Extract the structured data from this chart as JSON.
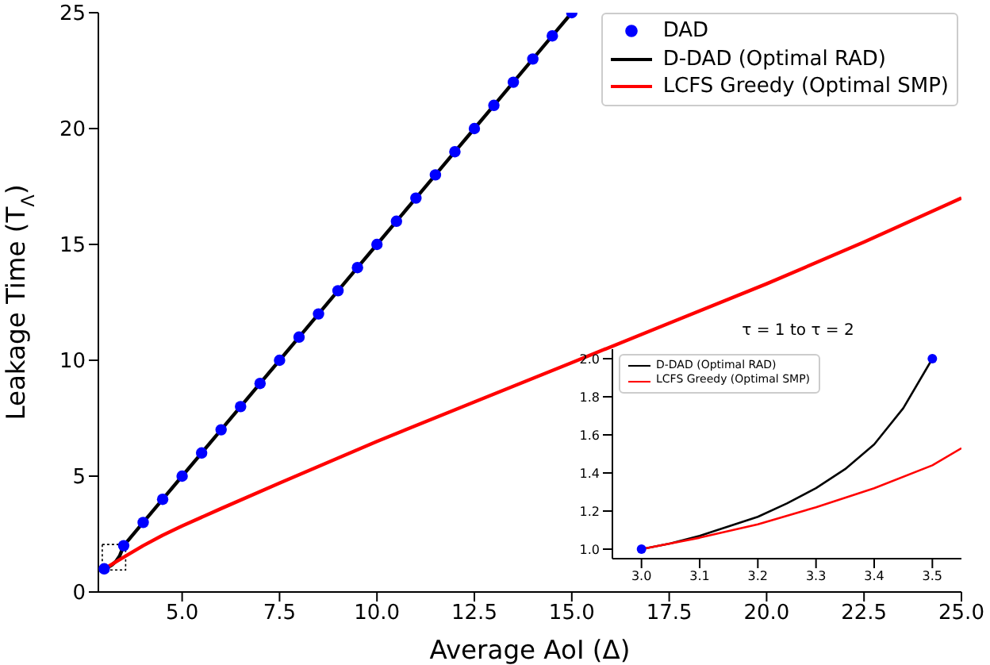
{
  "chart_data": [
    {
      "type": "line",
      "xlabel": "Average AoI (Δ)",
      "ylabel": "Leakage Time (T$_{Λ}$)",
      "xlim": [
        2.85,
        25
      ],
      "ylim": [
        0,
        25
      ],
      "xticks": [
        {
          "value": 5,
          "label": "5.0"
        },
        {
          "value": 7.5,
          "label": "7.5"
        },
        {
          "value": 10,
          "label": "10.0"
        },
        {
          "value": 12.5,
          "label": "12.5"
        },
        {
          "value": 15,
          "label": "15.0"
        },
        {
          "value": 17.5,
          "label": "17.5"
        },
        {
          "value": 20,
          "label": "20.0"
        },
        {
          "value": 22.5,
          "label": "22.5"
        },
        {
          "value": 25,
          "label": "25.0"
        }
      ],
      "yticks": [
        0,
        5,
        10,
        15,
        20,
        25
      ],
      "grid": false,
      "legend": "top right",
      "series": [
        {
          "name": "DAD",
          "type": "scatter",
          "marker": "circle",
          "color": "#0000ff",
          "x": [
            3,
            3.5,
            4,
            4.5,
            5,
            5.5,
            6,
            6.5,
            7,
            7.5,
            8,
            8.5,
            9,
            9.5,
            10,
            10.5,
            11,
            11.5,
            12,
            12.5,
            13,
            13.5,
            14,
            14.5,
            15
          ],
          "values": [
            1,
            2,
            3,
            4,
            5,
            6,
            7,
            8,
            9,
            10,
            11,
            12,
            13,
            14,
            15,
            16,
            17,
            18,
            19,
            20,
            21,
            22,
            23,
            24,
            25
          ]
        },
        {
          "name": "D-DAD (Optimal RAD)",
          "type": "line",
          "color": "#000000",
          "x": [
            3,
            3.1,
            3.2,
            3.3,
            3.4,
            3.5,
            4,
            4.5,
            5,
            5.5,
            6,
            6.5,
            7,
            7.5,
            8,
            8.5,
            9,
            9.5,
            10,
            10.5,
            11,
            11.5,
            12,
            12.5,
            13,
            13.5,
            14,
            14.5,
            15
          ],
          "values": [
            1,
            1.07,
            1.17,
            1.32,
            1.57,
            2,
            3,
            4,
            5,
            6,
            7,
            8,
            9,
            10,
            11,
            12,
            13,
            14,
            15,
            16,
            17,
            18,
            19,
            20,
            21,
            22,
            23,
            24,
            25
          ]
        },
        {
          "name": "LCFS Greedy (Optimal SMP)",
          "type": "line",
          "color": "#ff0000",
          "x": [
            3,
            3.5,
            4,
            4.5,
            5,
            6,
            7.5,
            10,
            12.5,
            15,
            17.5,
            20,
            22.5,
            25
          ],
          "values": [
            1,
            1.5,
            2,
            2.45,
            2.85,
            3.6,
            4.7,
            6.5,
            8.2,
            9.9,
            11.6,
            13.3,
            15.1,
            17
          ]
        }
      ]
    },
    {
      "type": "line",
      "title": "τ = 1 to τ = 2",
      "xlim": [
        2.95,
        3.55
      ],
      "ylim": [
        0.95,
        2.05
      ],
      "xticks": [
        {
          "value": 3,
          "label": "3.0"
        },
        3.1,
        3.2,
        3.3,
        3.4,
        3.5
      ],
      "yticks": [
        {
          "value": 1,
          "label": "1.0"
        },
        1.2,
        1.4,
        1.6,
        1.8,
        {
          "value": 2,
          "label": "2.0"
        }
      ],
      "grid": false,
      "legend": "top left",
      "series": [
        {
          "name": "D-DAD (Optimal RAD)",
          "type": "line",
          "color": "#000000",
          "x": [
            3,
            3.05,
            3.1,
            3.15,
            3.2,
            3.25,
            3.3,
            3.35,
            3.4,
            3.45,
            3.5
          ],
          "values": [
            1,
            1.03,
            1.07,
            1.12,
            1.17,
            1.24,
            1.32,
            1.42,
            1.55,
            1.74,
            2
          ]
        },
        {
          "name": "LCFS Greedy (Optimal SMP)",
          "type": "line",
          "color": "#ff0000",
          "x": [
            3,
            3.1,
            3.2,
            3.3,
            3.4,
            3.5,
            3.55
          ],
          "values": [
            1,
            1.06,
            1.13,
            1.22,
            1.32,
            1.44,
            1.53
          ]
        },
        {
          "type": "scatter",
          "marker": "circle",
          "color": "#0000ff",
          "x": [
            3,
            3.5
          ],
          "values": [
            1,
            2
          ]
        }
      ]
    }
  ]
}
